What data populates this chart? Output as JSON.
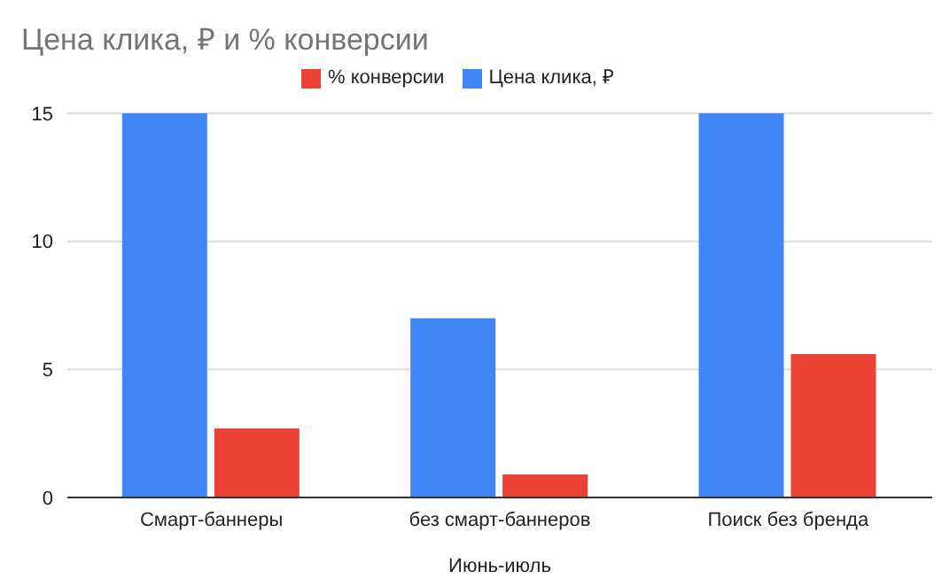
{
  "chart_data": {
    "type": "bar",
    "title": "Цена клика, ₽ и % конверсии",
    "xlabel": "Июнь-июль",
    "categories": [
      "Смарт-баннеры",
      "без смарт-баннеров",
      "Поиск без бренда"
    ],
    "series": [
      {
        "name": "Цена клика, ₽",
        "color": "#4285f4",
        "values": [
          15,
          7,
          15
        ]
      },
      {
        "name": "% конверсии",
        "color": "#ea4335",
        "values": [
          2.7,
          0.9,
          5.6
        ]
      }
    ],
    "ylim": [
      0,
      15
    ],
    "yticks": [
      0,
      5,
      10,
      15
    ],
    "grid": "y",
    "legend": "top"
  }
}
